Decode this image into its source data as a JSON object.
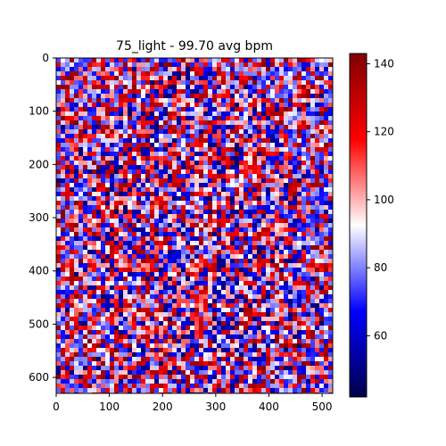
{
  "chart_data": {
    "type": "heatmap",
    "title": "75_light - 99.70 avg bpm",
    "xlabel": "",
    "ylabel": "",
    "xlim": [
      0,
      520
    ],
    "ylim": [
      630,
      0
    ],
    "x_ticks": [
      0,
      100,
      200,
      300,
      400,
      500
    ],
    "y_ticks": [
      0,
      100,
      200,
      300,
      400,
      500,
      600
    ],
    "colormap": "seismic",
    "colorbar": {
      "range": [
        42,
        143
      ],
      "ticks": [
        60,
        80,
        100,
        120,
        140
      ],
      "center": 92.5,
      "low_color": "#00004c",
      "mid_color": "#ffffff",
      "high_color": "#800000"
    },
    "data_description": "noisy per-pixel bpm map; values span ~42–143, blue-white-red"
  }
}
